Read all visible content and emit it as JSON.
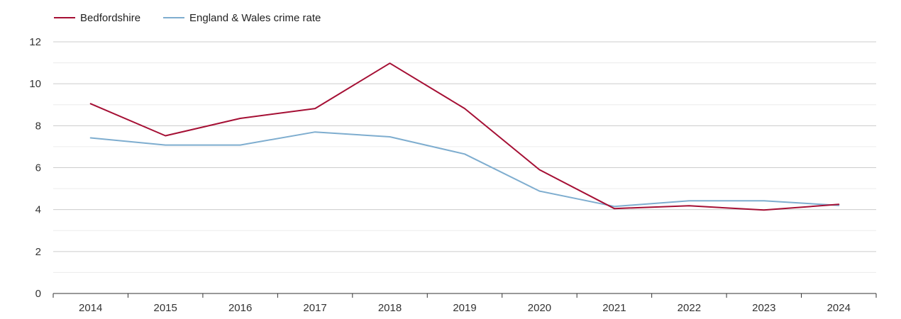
{
  "chart_data": {
    "type": "line",
    "title": "",
    "xlabel": "",
    "ylabel": "",
    "categories": [
      "2014",
      "2015",
      "2016",
      "2017",
      "2018",
      "2019",
      "2020",
      "2021",
      "2022",
      "2023",
      "2024"
    ],
    "ylim": [
      0,
      12
    ],
    "yticks": [
      0,
      2,
      4,
      6,
      8,
      10,
      12
    ],
    "grid": true,
    "legend_position": "top-left",
    "series": [
      {
        "name": "Bedfordshire",
        "color": "#a50f34",
        "values": [
          9.05,
          7.52,
          8.35,
          8.82,
          10.98,
          8.82,
          5.9,
          4.05,
          4.18,
          3.98,
          4.25
        ]
      },
      {
        "name": "England & Wales crime rate",
        "color": "#7eadcf",
        "values": [
          7.42,
          7.08,
          7.08,
          7.7,
          7.47,
          6.65,
          4.88,
          4.15,
          4.42,
          4.42,
          4.2
        ]
      }
    ]
  }
}
